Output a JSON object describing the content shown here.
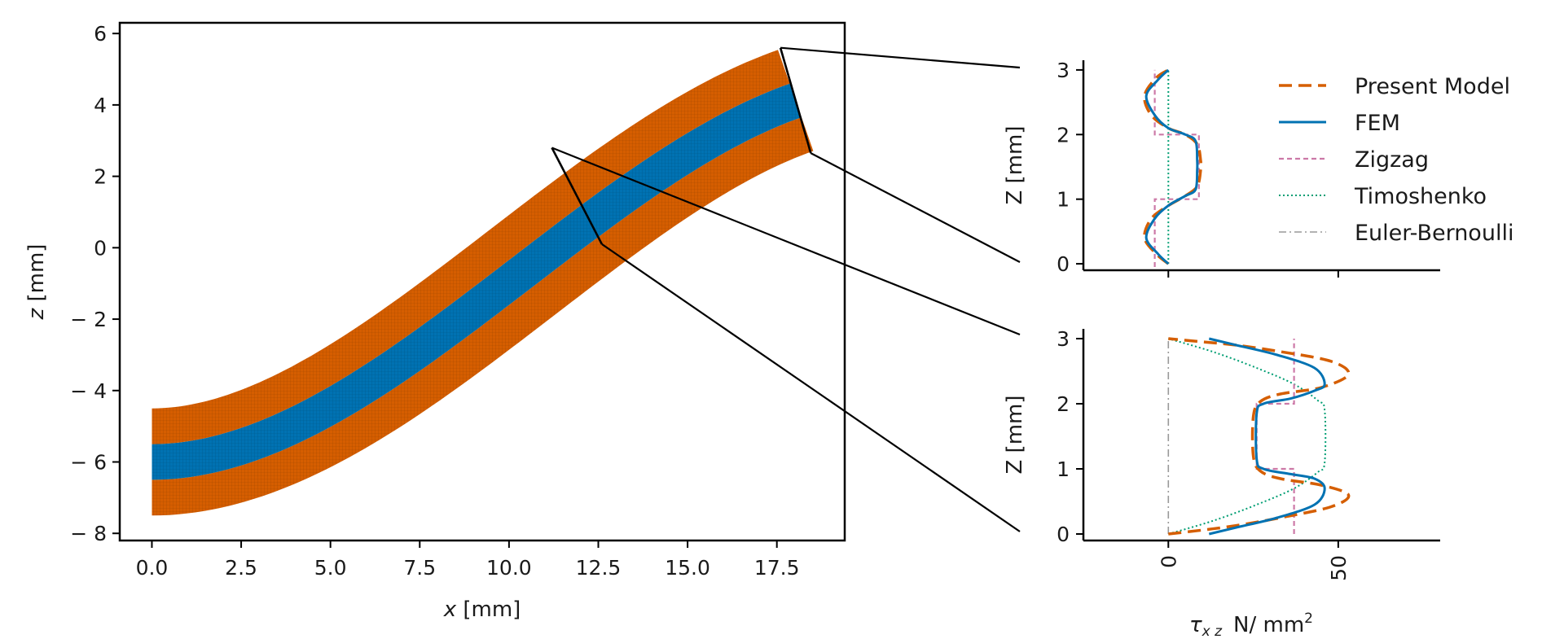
{
  "chart_data": [
    {
      "type": "area",
      "xlabel_sym": "x",
      "xlabel_unit": "[mm]",
      "ylabel_sym": "z",
      "ylabel_unit": "[mm]",
      "xlim": [
        -0.9,
        19.4
      ],
      "ylim": [
        -8.2,
        6.3
      ],
      "xticks": [
        0,
        2.5,
        5,
        7.5,
        10,
        12.5,
        15,
        17.5
      ],
      "xtick_labels": [
        "0.0",
        "2.5",
        "5.0",
        "7.5",
        "10.0",
        "12.5",
        "15.0",
        "17.5"
      ],
      "yticks": [
        6,
        4,
        2,
        0,
        -2,
        -4,
        -6,
        -8
      ],
      "ytick_labels": [
        "6",
        "4",
        "2",
        "0",
        "− 2",
        "− 4",
        "− 6",
        "− 8"
      ],
      "grid": false,
      "colors": {
        "outer_layers": "#d55e00",
        "core_layer": "#0072b2",
        "mesh": "#000000"
      },
      "deformed_beam": {
        "layer_boundaries_z0": [
          -7.5,
          -6.5,
          -5.5,
          -4.5
        ],
        "layer_materials": [
          "outer",
          "core",
          "outer"
        ],
        "section_cuts": [
          {
            "bottom": [
              12.6,
              0.1
            ],
            "top": [
              11.2,
              2.8
            ]
          },
          {
            "bottom": [
              18.45,
              2.65
            ],
            "top": [
              17.6,
              5.6
            ]
          }
        ]
      }
    },
    {
      "type": "line",
      "ylabel": "Z [mm]",
      "xlim": [
        -25,
        80
      ],
      "ylim": [
        -0.1,
        3.15
      ],
      "yticks": [
        0,
        1,
        2,
        3
      ],
      "ytick_labels": [
        "0",
        "1",
        "2",
        "3"
      ],
      "legend_placement": "right",
      "series": [
        {
          "name": "Present Model",
          "color": "#d55e00",
          "style": "dashed",
          "x": [
            0,
            -3.5,
            -7,
            -5,
            0,
            5,
            8.5,
            9.5,
            9.5,
            8.5,
            5,
            0,
            -5,
            -7,
            -3.5,
            0
          ],
          "y": [
            0,
            0.15,
            0.4,
            0.7,
            0.9,
            1.05,
            1.2,
            1.45,
            1.6,
            1.85,
            2.0,
            2.1,
            2.3,
            2.6,
            2.88,
            3.0
          ]
        },
        {
          "name": "FEM",
          "color": "#0072b2",
          "style": "solid",
          "x": [
            0,
            -3,
            -6.5,
            -4,
            0,
            5,
            8,
            8.5,
            8.5,
            8,
            5,
            0,
            -4,
            -6.5,
            -3,
            0
          ],
          "y": [
            0,
            0.15,
            0.4,
            0.7,
            0.9,
            1.05,
            1.15,
            1.45,
            1.6,
            1.9,
            2.0,
            2.1,
            2.3,
            2.6,
            2.85,
            3.0
          ]
        },
        {
          "name": "Zigzag",
          "color": "#cc79a7",
          "style": "dashed-fine",
          "x": [
            -4,
            -4,
            -4,
            0,
            0,
            9,
            9,
            0,
            0,
            -4,
            -4,
            -4
          ],
          "y": [
            -0.05,
            0.5,
            1.0,
            1.0,
            1.0,
            1.0,
            2.0,
            2.0,
            2.0,
            2.0,
            2.5,
            3.0
          ]
        },
        {
          "name": "Timoshenko",
          "color": "#009e73",
          "style": "dotted",
          "x": [
            0,
            0,
            0,
            0
          ],
          "y": [
            0,
            1,
            2,
            3
          ]
        },
        {
          "name": "Euler-Bernoulli",
          "color": "#999999",
          "style": "dashdot",
          "x": [],
          "y": []
        }
      ]
    },
    {
      "type": "line",
      "ylabel": "Z [mm]",
      "xlabel_sym": "τ",
      "xlabel_sub": "x z",
      "xlabel_unit": "N/ mm",
      "xlabel_sup": "2",
      "xlim": [
        -25,
        80
      ],
      "ylim": [
        -0.1,
        3.15
      ],
      "yticks": [
        0,
        1,
        2,
        3
      ],
      "ytick_labels": [
        "0",
        "1",
        "2",
        "3"
      ],
      "xticks": [
        0,
        50
      ],
      "xtick_labels": [
        "0",
        "50"
      ],
      "series": [
        {
          "name": "Present Model",
          "color": "#d55e00",
          "style": "dashed",
          "x": [
            0,
            10,
            20,
            33,
            48,
            53,
            45,
            33,
            27,
            25,
            25,
            27,
            33,
            45,
            53,
            48,
            33,
            20,
            10,
            0
          ],
          "y": [
            0,
            0.06,
            0.13,
            0.25,
            0.42,
            0.6,
            0.75,
            0.85,
            0.97,
            1.2,
            1.8,
            2.03,
            2.15,
            2.25,
            2.45,
            2.65,
            2.8,
            2.9,
            2.95,
            3.0
          ]
        },
        {
          "name": "FEM",
          "color": "#0072b2",
          "style": "solid",
          "x": [
            12,
            20,
            32,
            43,
            46,
            43,
            36,
            28,
            26,
            26,
            28,
            36,
            43,
            46,
            43,
            32,
            20,
            12
          ],
          "y": [
            0,
            0.1,
            0.25,
            0.45,
            0.7,
            0.85,
            0.92,
            1.0,
            1.15,
            1.85,
            2.0,
            2.08,
            2.2,
            2.3,
            2.55,
            2.75,
            2.9,
            3.0
          ]
        },
        {
          "name": "Zigzag",
          "color": "#cc79a7",
          "style": "dashed-fine",
          "x": [
            37,
            37,
            37,
            26,
            26,
            26,
            37,
            37,
            37
          ],
          "y": [
            0,
            0.5,
            1.0,
            1.0,
            1.5,
            2.0,
            2.0,
            2.5,
            3.0
          ]
        },
        {
          "name": "Timoshenko",
          "color": "#009e73",
          "style": "dotted",
          "x": [
            0,
            13,
            26,
            37,
            44,
            46,
            46,
            44,
            37,
            26,
            13,
            0
          ],
          "y": [
            0,
            0.2,
            0.45,
            0.7,
            0.95,
            1.1,
            1.9,
            2.05,
            2.3,
            2.55,
            2.8,
            3.0
          ]
        },
        {
          "name": "Euler-Bernoulli",
          "color": "#999999",
          "style": "dashdot",
          "x": [
            0,
            0
          ],
          "y": [
            0,
            3
          ]
        }
      ]
    }
  ]
}
